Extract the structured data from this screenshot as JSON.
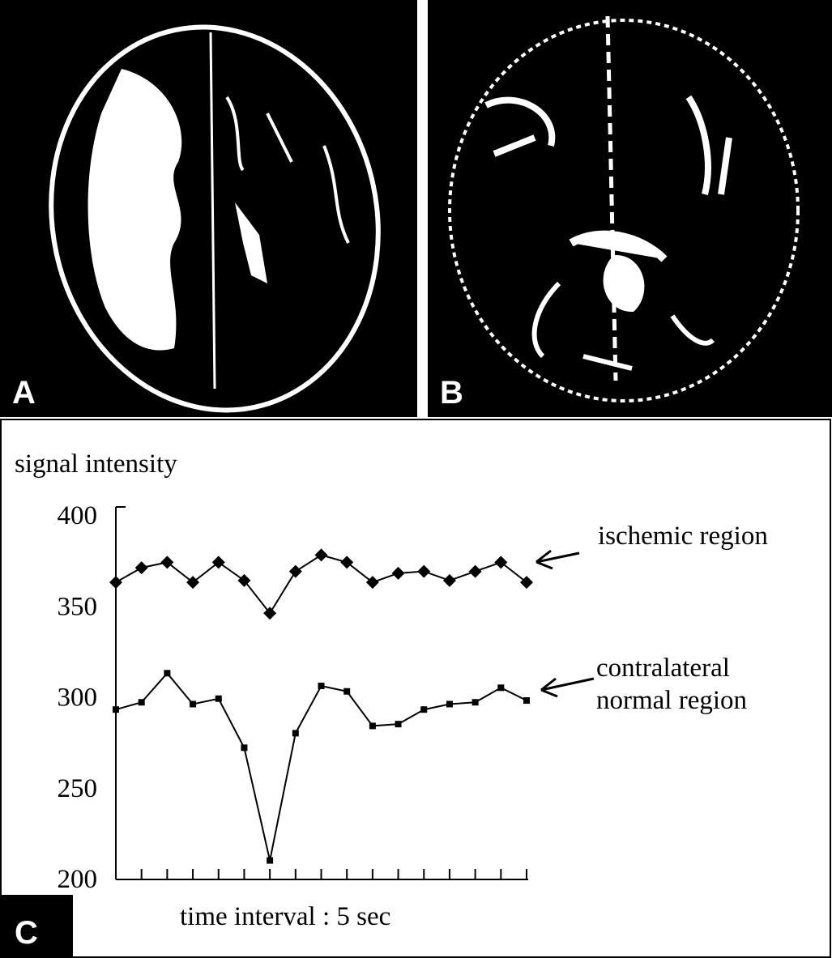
{
  "panels": {
    "a": "A",
    "b": "B",
    "c": "C"
  },
  "chart_data": {
    "type": "line",
    "y_label": "signal intensity",
    "x_label": "time interval : 5 sec",
    "categories": [
      null,
      null,
      null,
      null,
      null,
      null,
      null,
      null,
      null,
      null,
      null,
      null,
      null,
      null,
      null,
      null,
      null
    ],
    "series": [
      {
        "name": "ischemic region",
        "color": "#000000",
        "marker": "diamond",
        "values": [
          363,
          371,
          374,
          363,
          374,
          364,
          346,
          369,
          378,
          374,
          363,
          368,
          369,
          364,
          369,
          374,
          363
        ]
      },
      {
        "name": "contralateral normal region",
        "color": "#000000",
        "marker": "square",
        "values": [
          293,
          297,
          313,
          296,
          299,
          272,
          210,
          280,
          306,
          303,
          284,
          285,
          293,
          296,
          297,
          305,
          298
        ]
      }
    ],
    "ylim": [
      200,
      400
    ],
    "yticks": [
      200,
      250,
      300,
      350,
      400
    ],
    "grid": false
  }
}
